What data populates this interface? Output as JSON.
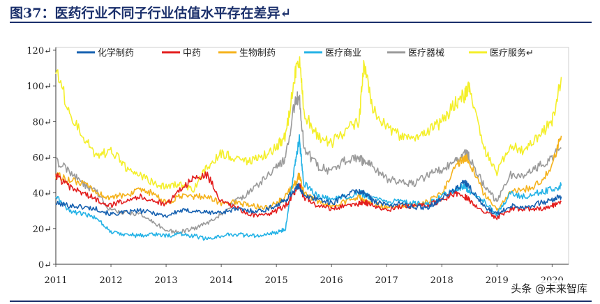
{
  "header": {
    "title": "图37：医药行业不同子行业估值水平存在差异↵"
  },
  "watermark": "头条 @未来智库",
  "colors": {
    "化学制药": "#1560b0",
    "中药": "#e31d1d",
    "生物制药": "#f5b21b",
    "医疗商业": "#23b2e6",
    "医疗器械": "#9a9a9a",
    "医疗服务": "#f4ef2a"
  },
  "chart_data": {
    "type": "line",
    "title": "",
    "xlabel": "",
    "ylabel": "",
    "ylim": [
      0,
      120
    ],
    "y_ticks": [
      "0↵",
      "20↵",
      "40↵",
      "60↵",
      "80↵",
      "100↵",
      "120↵"
    ],
    "x_ticks": [
      "2011",
      "2012",
      "2013",
      "2014",
      "2015",
      "2016",
      "2017",
      "2018",
      "2019",
      "2020"
    ],
    "legend_position": "top",
    "legend": [
      "化学制药",
      "中药",
      "生物制药",
      "医疗商业",
      "医疗器械",
      "医疗服务↵"
    ],
    "x": [
      "2011-01",
      "2011-04",
      "2011-07",
      "2011-10",
      "2012-01",
      "2012-04",
      "2012-07",
      "2012-10",
      "2013-01",
      "2013-04",
      "2013-07",
      "2013-10",
      "2014-01",
      "2014-04",
      "2014-07",
      "2014-10",
      "2015-01",
      "2015-03",
      "2015-05",
      "2015-06",
      "2015-07",
      "2015-10",
      "2016-01",
      "2016-04",
      "2016-07",
      "2016-08",
      "2016-10",
      "2017-01",
      "2017-04",
      "2017-07",
      "2017-10",
      "2018-01",
      "2018-04",
      "2018-06",
      "2018-07",
      "2018-10",
      "2019-01",
      "2019-04",
      "2019-07",
      "2019-10",
      "2020-01",
      "2020-03"
    ],
    "series": [
      {
        "name": "化学制药",
        "values": [
          34,
          33,
          32,
          31,
          28,
          29,
          30,
          29,
          27,
          30,
          30,
          29,
          29,
          31,
          30,
          30,
          33,
          36,
          42,
          44,
          38,
          37,
          34,
          39,
          41,
          40,
          36,
          33,
          34,
          32,
          32,
          37,
          42,
          46,
          43,
          33,
          28,
          33,
          32,
          34,
          36,
          38
        ]
      },
      {
        "name": "中药",
        "values": [
          50,
          43,
          40,
          36,
          33,
          36,
          38,
          36,
          33,
          42,
          48,
          50,
          35,
          32,
          28,
          27,
          30,
          33,
          40,
          45,
          37,
          33,
          31,
          33,
          34,
          35,
          33,
          30,
          32,
          33,
          33,
          36,
          40,
          38,
          36,
          30,
          26,
          31,
          31,
          31,
          33,
          35
        ]
      },
      {
        "name": "生物制药",
        "values": [
          50,
          47,
          45,
          40,
          37,
          39,
          41,
          40,
          34,
          38,
          38,
          38,
          34,
          35,
          33,
          32,
          34,
          38,
          45,
          50,
          40,
          35,
          32,
          35,
          38,
          36,
          34,
          32,
          33,
          33,
          35,
          40,
          55,
          60,
          58,
          40,
          30,
          40,
          42,
          45,
          55,
          72
        ]
      },
      {
        "name": "医疗商业",
        "values": [
          38,
          30,
          28,
          26,
          18,
          17,
          16,
          17,
          16,
          17,
          16,
          14,
          16,
          17,
          16,
          16,
          18,
          20,
          55,
          70,
          45,
          38,
          36,
          38,
          40,
          39,
          37,
          35,
          35,
          34,
          34,
          38,
          42,
          44,
          41,
          36,
          28,
          40,
          38,
          40,
          42,
          44
        ]
      },
      {
        "name": "医疗器械",
        "values": [
          58,
          52,
          45,
          40,
          30,
          29,
          28,
          24,
          19,
          18,
          20,
          23,
          28,
          35,
          40,
          47,
          54,
          60,
          90,
          95,
          65,
          55,
          52,
          58,
          60,
          57,
          55,
          48,
          46,
          45,
          50,
          53,
          58,
          63,
          60,
          45,
          35,
          50,
          50,
          55,
          60,
          65
        ]
      },
      {
        "name": "医疗服务",
        "values": [
          110,
          85,
          72,
          60,
          64,
          55,
          50,
          46,
          43,
          45,
          42,
          55,
          62,
          60,
          58,
          60,
          66,
          72,
          105,
          115,
          85,
          72,
          68,
          75,
          80,
          112,
          88,
          77,
          72,
          70,
          74,
          80,
          90,
          95,
          100,
          65,
          52,
          66,
          64,
          72,
          80,
          105
        ]
      }
    ]
  }
}
